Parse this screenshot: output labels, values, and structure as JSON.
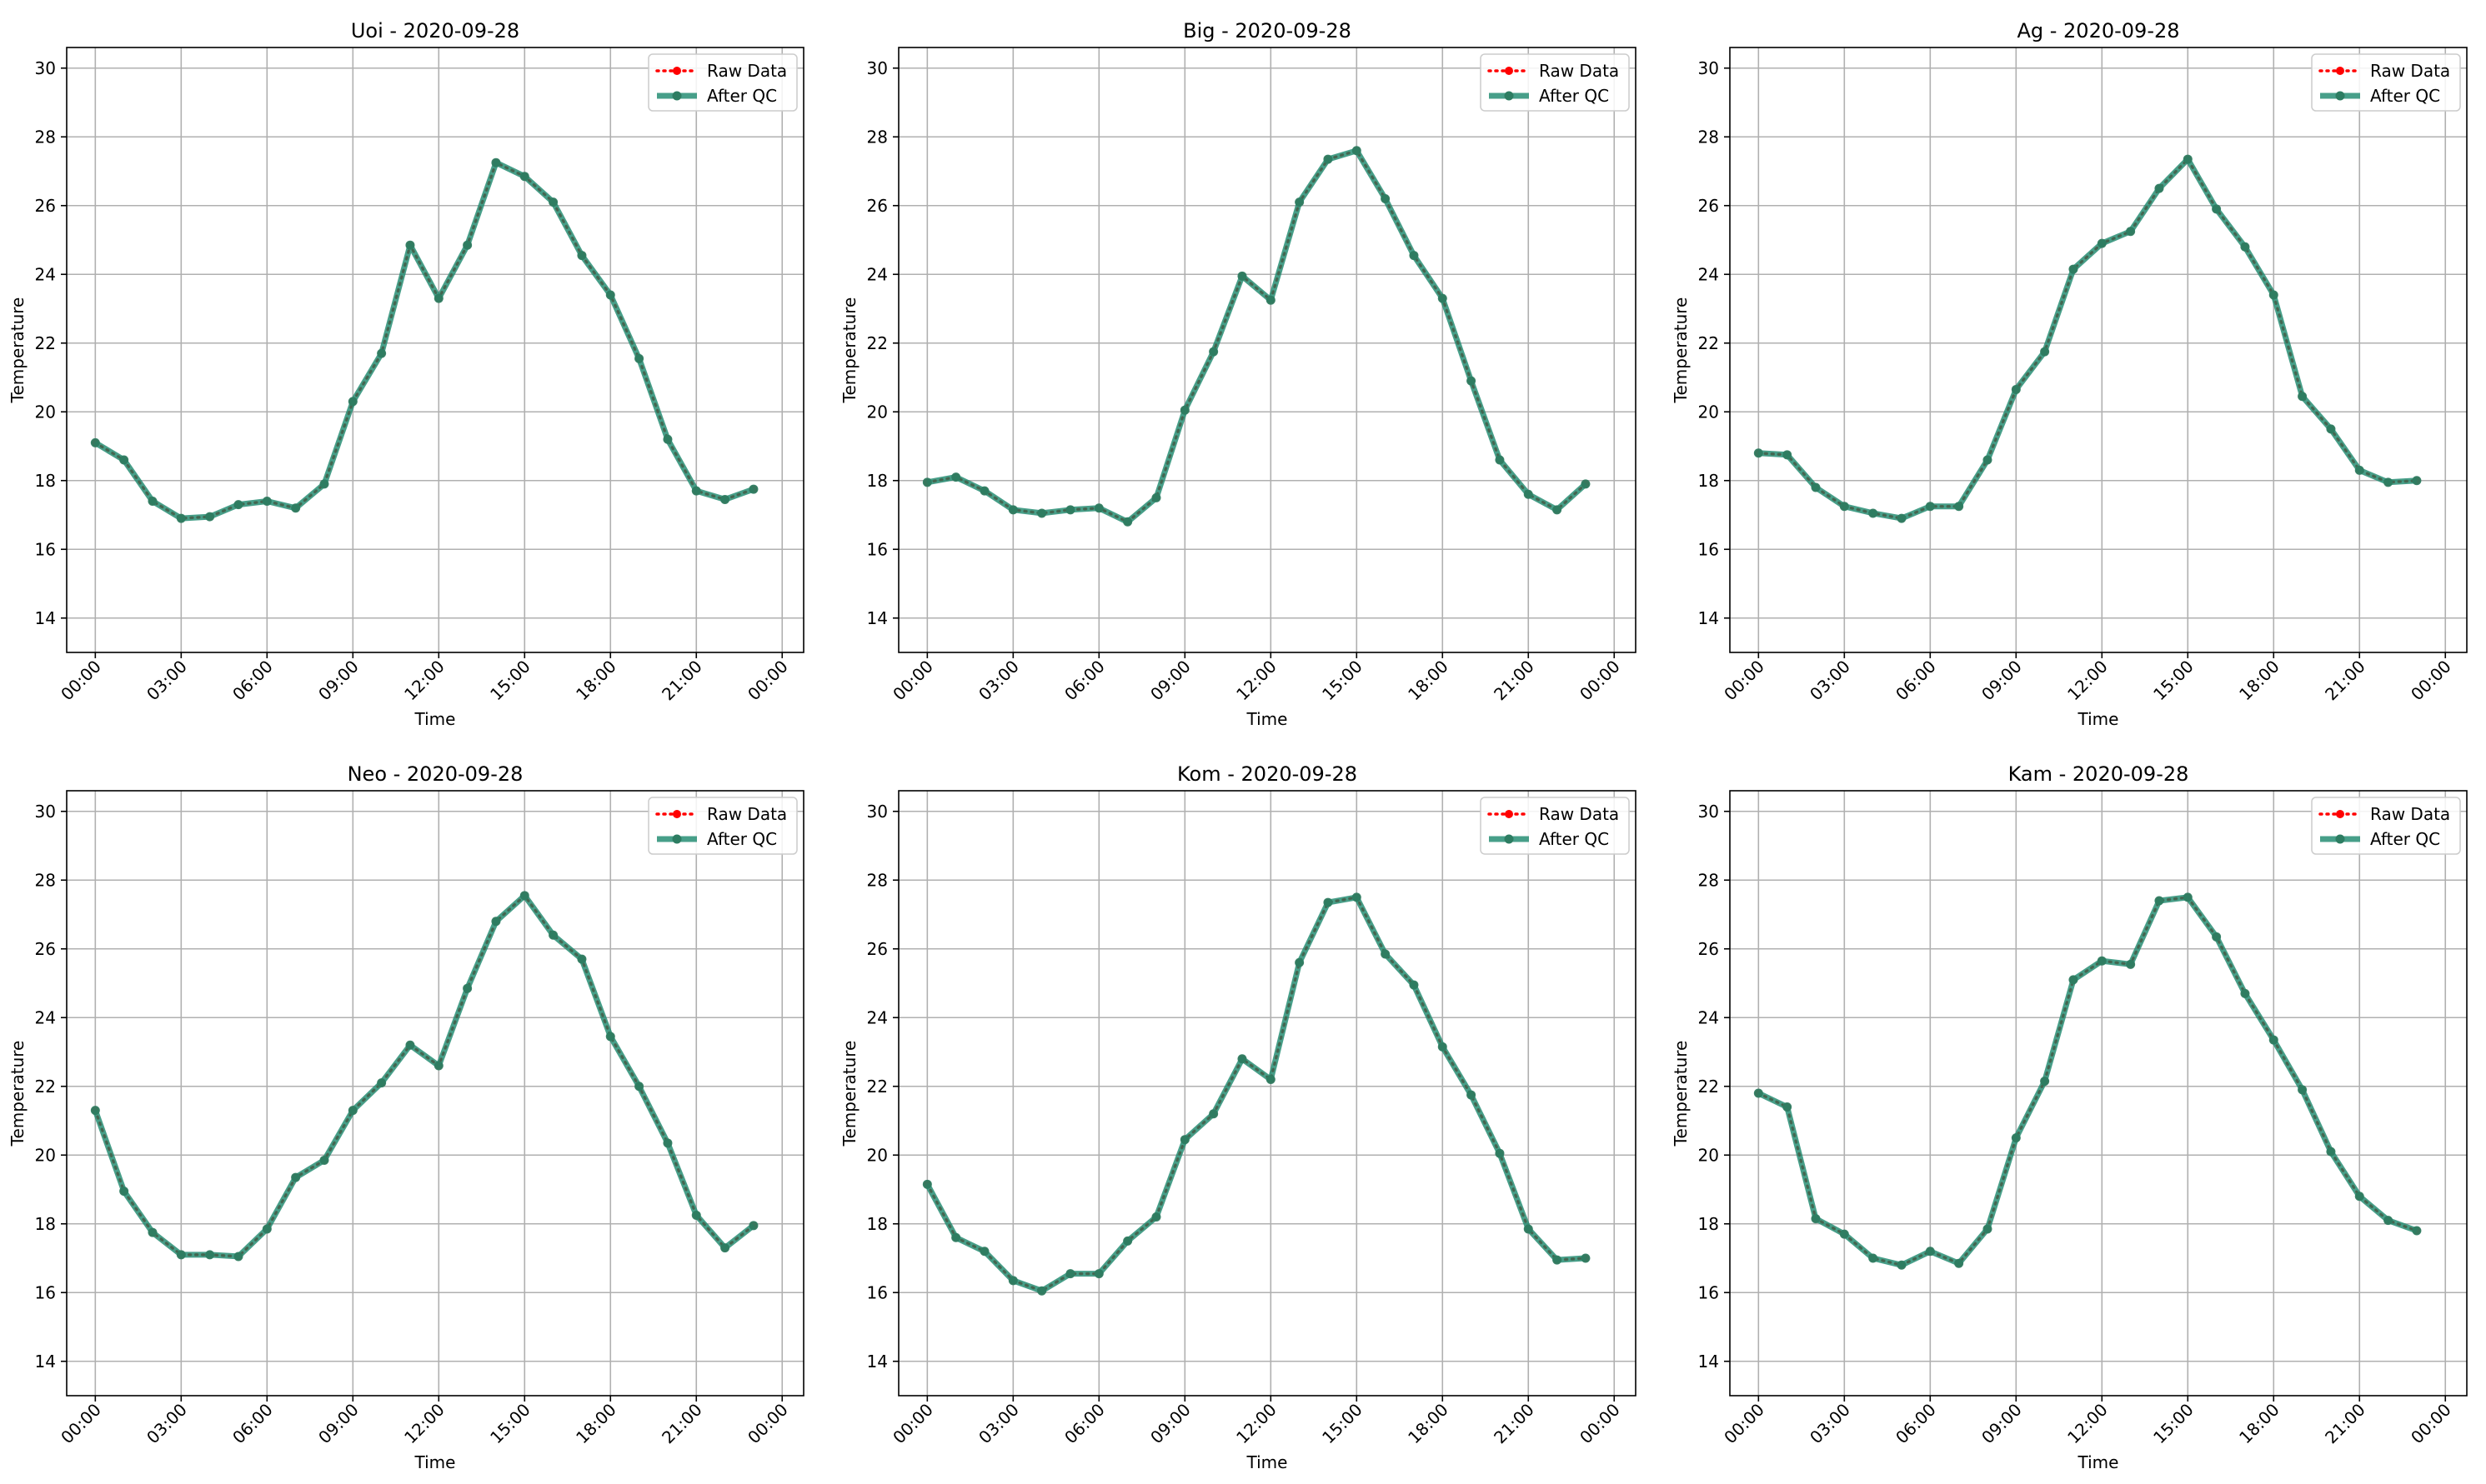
{
  "figure": {
    "legend": {
      "raw_label": "Raw Data",
      "qc_label": "After QC"
    },
    "colors": {
      "raw": "#ff0000",
      "qc": "#1f8a6f",
      "grid": "#b0b0b0",
      "axis": "#000000"
    }
  },
  "chart_data": [
    {
      "type": "line",
      "title": "Uoi - 2020-09-28",
      "xlabel": "Time",
      "ylabel": "Temperature",
      "xlim": [
        "2020-09-27T23:00",
        "2020-09-29T00:45"
      ],
      "ylim": [
        13,
        30.6
      ],
      "x_ticks": [
        "00:00",
        "03:00",
        "06:00",
        "09:00",
        "12:00",
        "15:00",
        "18:00",
        "21:00",
        "00:00"
      ],
      "y_ticks": [
        14,
        16,
        18,
        20,
        22,
        24,
        26,
        28,
        30
      ],
      "grid": true,
      "legend_position": "upper right",
      "x": [
        "00:00",
        "01:00",
        "02:00",
        "03:00",
        "04:00",
        "05:00",
        "06:00",
        "07:00",
        "08:00",
        "09:00",
        "10:00",
        "11:00",
        "12:00",
        "13:00",
        "14:00",
        "15:00",
        "16:00",
        "17:00",
        "18:00",
        "19:00",
        "20:00",
        "21:00",
        "22:00",
        "23:00"
      ],
      "series": [
        {
          "name": "Raw Data",
          "values": [
            19.1,
            18.6,
            17.4,
            16.9,
            16.95,
            17.3,
            17.4,
            17.2,
            17.9,
            20.3,
            21.7,
            24.85,
            23.3,
            24.85,
            27.25,
            26.85,
            26.1,
            24.55,
            23.4,
            21.55,
            19.2,
            17.7,
            17.45,
            17.75
          ]
        },
        {
          "name": "After QC",
          "values": [
            19.1,
            18.6,
            17.4,
            16.9,
            16.95,
            17.3,
            17.4,
            17.2,
            17.9,
            20.3,
            21.7,
            24.85,
            23.3,
            24.85,
            27.25,
            26.85,
            26.1,
            24.55,
            23.4,
            21.55,
            19.2,
            17.7,
            17.45,
            17.75
          ]
        }
      ]
    },
    {
      "type": "line",
      "title": "Big - 2020-09-28",
      "xlabel": "Time",
      "ylabel": "Temperature",
      "xlim": [
        "2020-09-27T23:00",
        "2020-09-29T00:45"
      ],
      "ylim": [
        13,
        30.6
      ],
      "x_ticks": [
        "00:00",
        "03:00",
        "06:00",
        "09:00",
        "12:00",
        "15:00",
        "18:00",
        "21:00",
        "00:00"
      ],
      "y_ticks": [
        14,
        16,
        18,
        20,
        22,
        24,
        26,
        28,
        30
      ],
      "grid": true,
      "legend_position": "upper right",
      "x": [
        "00:00",
        "01:00",
        "02:00",
        "03:00",
        "04:00",
        "05:00",
        "06:00",
        "07:00",
        "08:00",
        "09:00",
        "10:00",
        "11:00",
        "12:00",
        "13:00",
        "14:00",
        "15:00",
        "16:00",
        "17:00",
        "18:00",
        "19:00",
        "20:00",
        "21:00",
        "22:00",
        "23:00"
      ],
      "series": [
        {
          "name": "Raw Data",
          "values": [
            17.95,
            18.1,
            17.7,
            17.15,
            17.05,
            17.15,
            17.2,
            16.8,
            17.5,
            20.05,
            21.75,
            23.95,
            23.25,
            26.1,
            27.35,
            27.6,
            26.2,
            24.55,
            23.3,
            20.9,
            18.6,
            17.6,
            17.15,
            17.9
          ]
        },
        {
          "name": "After QC",
          "values": [
            17.95,
            18.1,
            17.7,
            17.15,
            17.05,
            17.15,
            17.2,
            16.8,
            17.5,
            20.05,
            21.75,
            23.95,
            23.25,
            26.1,
            27.35,
            27.6,
            26.2,
            24.55,
            23.3,
            20.9,
            18.6,
            17.6,
            17.15,
            17.9
          ]
        }
      ]
    },
    {
      "type": "line",
      "title": "Ag - 2020-09-28",
      "xlabel": "Time",
      "ylabel": "Temperature",
      "xlim": [
        "2020-09-27T23:00",
        "2020-09-29T00:45"
      ],
      "ylim": [
        13,
        30.6
      ],
      "x_ticks": [
        "00:00",
        "03:00",
        "06:00",
        "09:00",
        "12:00",
        "15:00",
        "18:00",
        "21:00",
        "00:00"
      ],
      "y_ticks": [
        14,
        16,
        18,
        20,
        22,
        24,
        26,
        28,
        30
      ],
      "grid": true,
      "legend_position": "upper right",
      "x": [
        "00:00",
        "01:00",
        "02:00",
        "03:00",
        "04:00",
        "05:00",
        "06:00",
        "07:00",
        "08:00",
        "09:00",
        "10:00",
        "11:00",
        "12:00",
        "13:00",
        "14:00",
        "15:00",
        "16:00",
        "17:00",
        "18:00",
        "19:00",
        "20:00",
        "21:00",
        "22:00",
        "23:00"
      ],
      "series": [
        {
          "name": "Raw Data",
          "values": [
            18.8,
            18.75,
            17.8,
            17.25,
            17.05,
            16.9,
            17.25,
            17.25,
            18.6,
            20.65,
            21.75,
            24.15,
            24.9,
            25.25,
            26.5,
            27.35,
            25.9,
            24.8,
            23.4,
            20.45,
            19.5,
            18.3,
            17.95,
            18.0
          ]
        },
        {
          "name": "After QC",
          "values": [
            18.8,
            18.75,
            17.8,
            17.25,
            17.05,
            16.9,
            17.25,
            17.25,
            18.6,
            20.65,
            21.75,
            24.15,
            24.9,
            25.25,
            26.5,
            27.35,
            25.9,
            24.8,
            23.4,
            20.45,
            19.5,
            18.3,
            17.95,
            18.0
          ]
        }
      ]
    },
    {
      "type": "line",
      "title": "Neo - 2020-09-28",
      "xlabel": "Time",
      "ylabel": "Temperature",
      "xlim": [
        "2020-09-27T23:00",
        "2020-09-29T00:45"
      ],
      "ylim": [
        13,
        30.6
      ],
      "x_ticks": [
        "00:00",
        "03:00",
        "06:00",
        "09:00",
        "12:00",
        "15:00",
        "18:00",
        "21:00",
        "00:00"
      ],
      "y_ticks": [
        14,
        16,
        18,
        20,
        22,
        24,
        26,
        28,
        30
      ],
      "grid": true,
      "legend_position": "upper right",
      "x": [
        "00:00",
        "01:00",
        "02:00",
        "03:00",
        "04:00",
        "05:00",
        "06:00",
        "07:00",
        "08:00",
        "09:00",
        "10:00",
        "11:00",
        "12:00",
        "13:00",
        "14:00",
        "15:00",
        "16:00",
        "17:00",
        "18:00",
        "19:00",
        "20:00",
        "21:00",
        "22:00",
        "23:00"
      ],
      "series": [
        {
          "name": "Raw Data",
          "values": [
            21.3,
            18.95,
            17.75,
            17.1,
            17.1,
            17.05,
            17.85,
            19.35,
            19.85,
            21.3,
            22.1,
            23.2,
            22.6,
            24.85,
            26.8,
            27.55,
            26.4,
            25.7,
            23.45,
            22.0,
            20.35,
            18.25,
            17.3,
            17.95
          ]
        },
        {
          "name": "After QC",
          "values": [
            21.3,
            18.95,
            17.75,
            17.1,
            17.1,
            17.05,
            17.85,
            19.35,
            19.85,
            21.3,
            22.1,
            23.2,
            22.6,
            24.85,
            26.8,
            27.55,
            26.4,
            25.7,
            23.45,
            22.0,
            20.35,
            18.25,
            17.3,
            17.95
          ]
        }
      ]
    },
    {
      "type": "line",
      "title": "Kom - 2020-09-28",
      "xlabel": "Time",
      "ylabel": "Temperature",
      "xlim": [
        "2020-09-27T23:00",
        "2020-09-29T00:45"
      ],
      "ylim": [
        13,
        30.6
      ],
      "x_ticks": [
        "00:00",
        "03:00",
        "06:00",
        "09:00",
        "12:00",
        "15:00",
        "18:00",
        "21:00",
        "00:00"
      ],
      "y_ticks": [
        14,
        16,
        18,
        20,
        22,
        24,
        26,
        28,
        30
      ],
      "grid": true,
      "legend_position": "upper right",
      "x": [
        "00:00",
        "01:00",
        "02:00",
        "03:00",
        "04:00",
        "05:00",
        "06:00",
        "07:00",
        "08:00",
        "09:00",
        "10:00",
        "11:00",
        "12:00",
        "13:00",
        "14:00",
        "15:00",
        "16:00",
        "17:00",
        "18:00",
        "19:00",
        "20:00",
        "21:00",
        "22:00",
        "23:00"
      ],
      "series": [
        {
          "name": "Raw Data",
          "values": [
            19.15,
            17.6,
            17.2,
            16.35,
            16.05,
            16.55,
            16.55,
            17.5,
            18.2,
            20.45,
            21.2,
            22.8,
            22.2,
            25.6,
            27.35,
            27.5,
            25.85,
            24.95,
            23.15,
            21.75,
            20.05,
            17.85,
            16.95,
            17.0
          ]
        },
        {
          "name": "After QC",
          "values": [
            19.15,
            17.6,
            17.2,
            16.35,
            16.05,
            16.55,
            16.55,
            17.5,
            18.2,
            20.45,
            21.2,
            22.8,
            22.2,
            25.6,
            27.35,
            27.5,
            25.85,
            24.95,
            23.15,
            21.75,
            20.05,
            17.85,
            16.95,
            17.0
          ]
        }
      ]
    },
    {
      "type": "line",
      "title": "Kam - 2020-09-28",
      "xlabel": "Time",
      "ylabel": "Temperature",
      "xlim": [
        "2020-09-27T23:00",
        "2020-09-29T00:45"
      ],
      "ylim": [
        13,
        30.6
      ],
      "x_ticks": [
        "00:00",
        "03:00",
        "06:00",
        "09:00",
        "12:00",
        "15:00",
        "18:00",
        "21:00",
        "00:00"
      ],
      "y_ticks": [
        14,
        16,
        18,
        20,
        22,
        24,
        26,
        28,
        30
      ],
      "grid": true,
      "legend_position": "upper right",
      "x": [
        "00:00",
        "01:00",
        "02:00",
        "03:00",
        "04:00",
        "05:00",
        "06:00",
        "07:00",
        "08:00",
        "09:00",
        "10:00",
        "11:00",
        "12:00",
        "13:00",
        "14:00",
        "15:00",
        "16:00",
        "17:00",
        "18:00",
        "19:00",
        "20:00",
        "21:00",
        "22:00",
        "23:00"
      ],
      "series": [
        {
          "name": "Raw Data",
          "values": [
            21.8,
            21.4,
            18.15,
            17.7,
            17.0,
            16.8,
            17.2,
            16.85,
            17.85,
            20.5,
            22.15,
            25.1,
            25.65,
            25.55,
            27.4,
            27.5,
            26.35,
            24.7,
            23.35,
            21.9,
            20.1,
            18.8,
            18.1,
            17.8
          ]
        },
        {
          "name": "After QC",
          "values": [
            21.8,
            21.4,
            18.15,
            17.7,
            17.0,
            16.8,
            17.2,
            16.85,
            17.85,
            20.5,
            22.15,
            25.1,
            25.65,
            25.55,
            27.4,
            27.5,
            26.35,
            24.7,
            23.35,
            21.9,
            20.1,
            18.8,
            18.1,
            17.8
          ]
        }
      ]
    }
  ]
}
